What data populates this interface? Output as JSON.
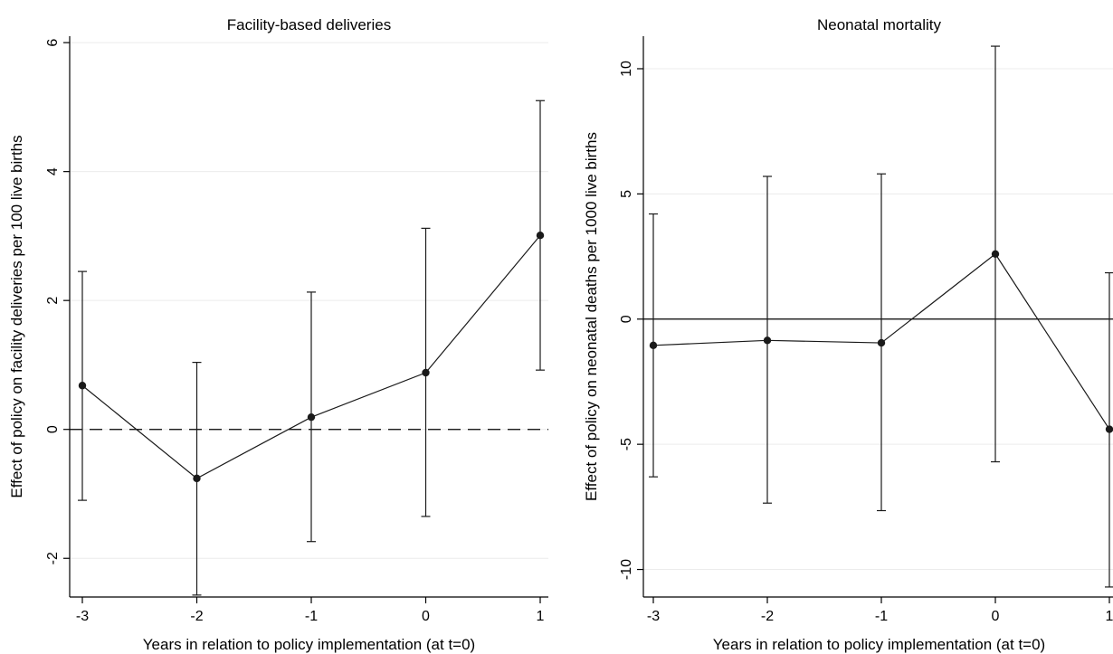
{
  "colors": {
    "background": "#ffffff",
    "ink": "#000000",
    "grid": "#ececec",
    "series": "#1a1a1a"
  },
  "chart_data": [
    {
      "type": "line",
      "title": "Facility-based deliveries",
      "xlabel": "Years in relation to policy implementation (at t=0)",
      "ylabel": "Effect of policy on facility deliveries per 100 live births",
      "x": [
        -3,
        -2,
        -1,
        0,
        1
      ],
      "xticks": [
        -3,
        -2,
        -1,
        0,
        1
      ],
      "xlim": [
        -3,
        1
      ],
      "ylim": [
        -2.6,
        6.1
      ],
      "yticks": [
        -2,
        0,
        2,
        4,
        6
      ],
      "grid": true,
      "reference_line": {
        "y": 0,
        "style": "dashed"
      },
      "series": [
        {
          "values": [
            0.68,
            -0.76,
            0.19,
            0.88,
            3.01
          ],
          "ci_low": [
            -1.1,
            -2.57,
            -1.74,
            -1.35,
            0.92
          ],
          "ci_high": [
            2.45,
            1.04,
            2.13,
            3.12,
            5.1
          ]
        }
      ]
    },
    {
      "type": "line",
      "title": "Neonatal mortality",
      "xlabel": "Years in relation to policy implementation (at t=0)",
      "ylabel": "Effect of policy on neonatal deaths per 1000 live births",
      "x": [
        -3,
        -2,
        -1,
        0,
        1
      ],
      "xticks": [
        -3,
        -2,
        -1,
        0,
        1
      ],
      "xlim": [
        -3,
        1
      ],
      "ylim": [
        -11.1,
        11.3
      ],
      "yticks": [
        -10,
        -5,
        0,
        5,
        10
      ],
      "grid": true,
      "reference_line": {
        "y": 0,
        "style": "solid"
      },
      "series": [
        {
          "values": [
            -1.05,
            -0.85,
            -0.95,
            2.6,
            -4.4
          ],
          "ci_low": [
            -6.3,
            -7.35,
            -7.65,
            -5.7,
            -10.7
          ],
          "ci_high": [
            4.2,
            5.7,
            5.8,
            10.9,
            1.85
          ]
        }
      ]
    }
  ]
}
